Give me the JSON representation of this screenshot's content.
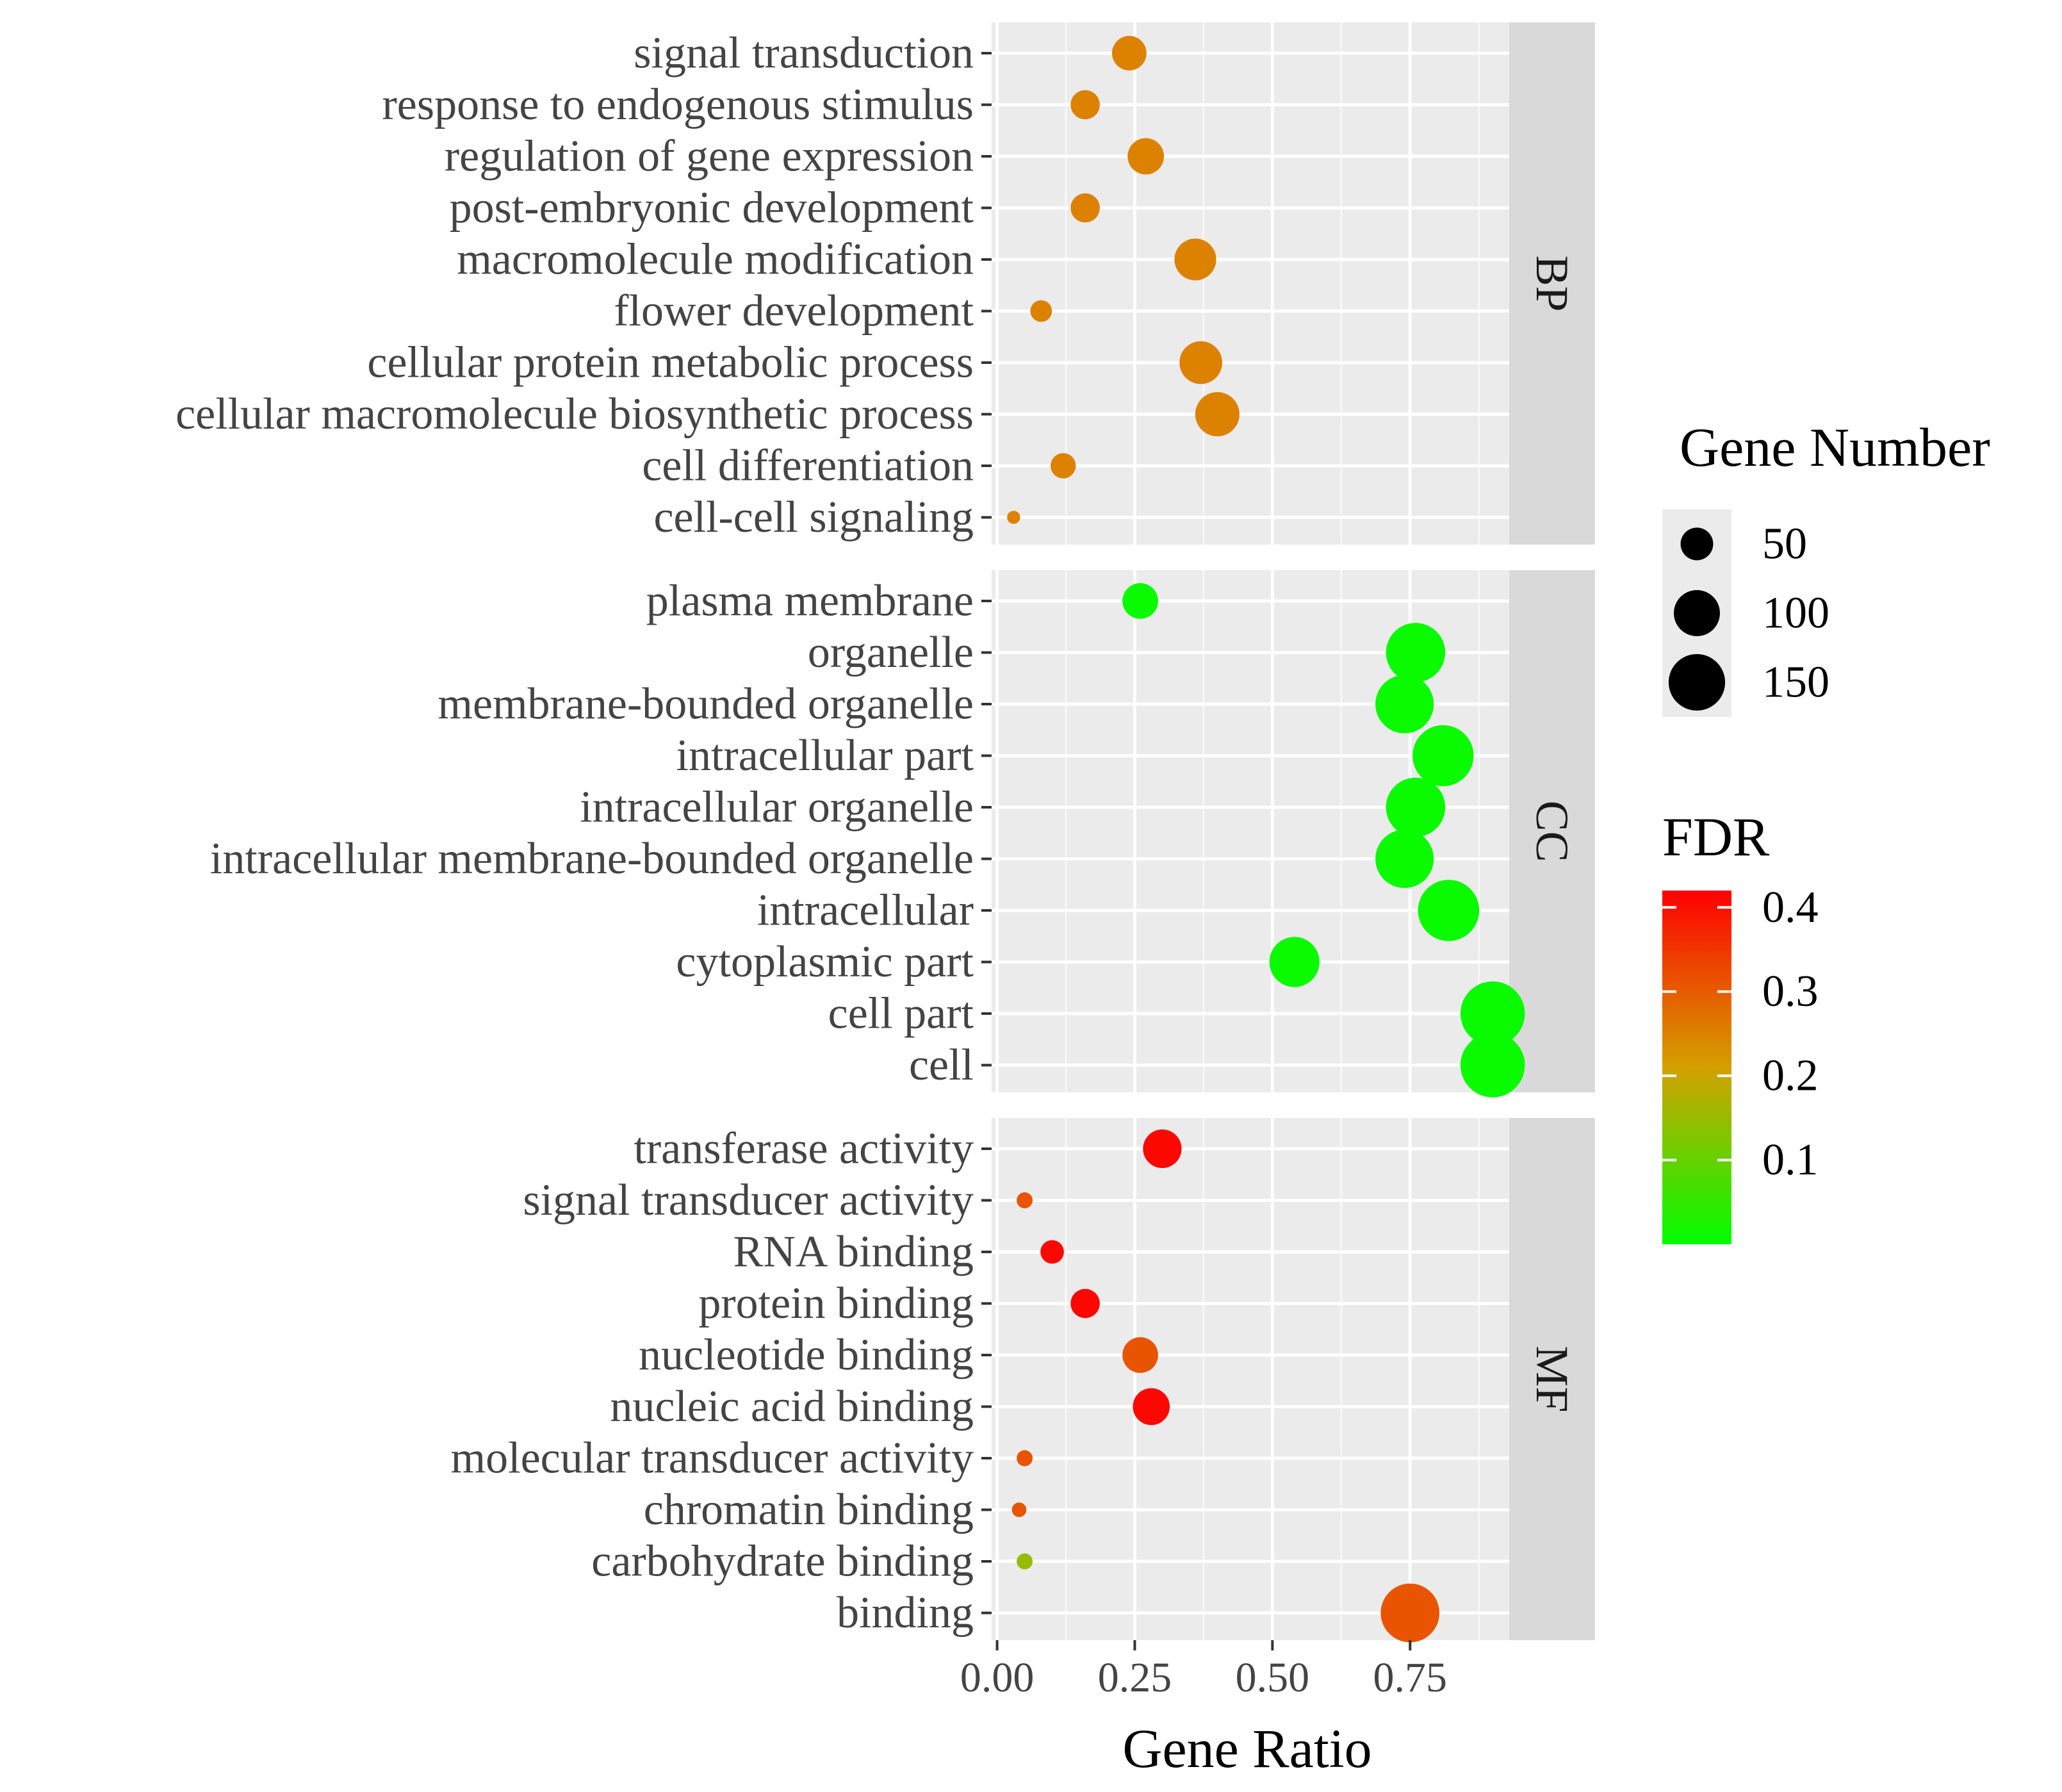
{
  "chart_data": {
    "type": "scatter",
    "xlabel": "Gene Ratio",
    "xlim": [
      -0.01,
      0.93
    ],
    "xticks": [
      0,
      0.25,
      0.5,
      0.75
    ],
    "xtick_labels": [
      "0.00",
      "0.25",
      "0.50",
      "0.75"
    ],
    "size_legend": {
      "title": "Gene Number",
      "values": [
        50,
        100,
        150
      ],
      "labels": [
        "50",
        "100",
        "150"
      ]
    },
    "color_legend": {
      "title": "FDR",
      "min": 0,
      "max": 0.42,
      "ticks": [
        0.1,
        0.2,
        0.3,
        0.4
      ],
      "tick_labels": [
        "0.1",
        "0.2",
        "0.3",
        "0.4"
      ],
      "low_color": "#00ff00",
      "high_color": "#ff0000"
    },
    "facets": [
      {
        "name": "BP",
        "terms": [
          {
            "term": "signal transduction",
            "ratio": 0.24,
            "count": 56,
            "fdr": 0.25
          },
          {
            "term": "response to endogenous stimulus",
            "ratio": 0.16,
            "count": 40,
            "fdr": 0.25
          },
          {
            "term": "regulation of gene expression",
            "ratio": 0.27,
            "count": 62,
            "fdr": 0.25
          },
          {
            "term": "post-embryonic development",
            "ratio": 0.16,
            "count": 40,
            "fdr": 0.25
          },
          {
            "term": "macromolecule modification",
            "ratio": 0.36,
            "count": 82,
            "fdr": 0.25
          },
          {
            "term": "flower development",
            "ratio": 0.08,
            "count": 22,
            "fdr": 0.25
          },
          {
            "term": "cellular protein metabolic process",
            "ratio": 0.37,
            "count": 86,
            "fdr": 0.25
          },
          {
            "term": "cellular macromolecule biosynthetic process",
            "ratio": 0.4,
            "count": 92,
            "fdr": 0.25
          },
          {
            "term": "cell differentiation",
            "ratio": 0.12,
            "count": 30,
            "fdr": 0.25
          },
          {
            "term": "cell-cell signaling",
            "ratio": 0.03,
            "count": 8,
            "fdr": 0.25
          }
        ]
      },
      {
        "name": "CC",
        "terms": [
          {
            "term": "plasma membrane",
            "ratio": 0.26,
            "count": 60,
            "fdr": 0.01
          },
          {
            "term": "organelle",
            "ratio": 0.76,
            "count": 165,
            "fdr": 0.01
          },
          {
            "term": "membrane-bounded organelle",
            "ratio": 0.74,
            "count": 160,
            "fdr": 0.01
          },
          {
            "term": "intracellular part",
            "ratio": 0.81,
            "count": 175,
            "fdr": 0.01
          },
          {
            "term": "intracellular organelle",
            "ratio": 0.76,
            "count": 165,
            "fdr": 0.01
          },
          {
            "term": "intracellular membrane-bounded organelle",
            "ratio": 0.74,
            "count": 160,
            "fdr": 0.01
          },
          {
            "term": "intracellular",
            "ratio": 0.82,
            "count": 176,
            "fdr": 0.01
          },
          {
            "term": "cytoplasmic part",
            "ratio": 0.54,
            "count": 118,
            "fdr": 0.01
          },
          {
            "term": "cell part",
            "ratio": 0.9,
            "count": 195,
            "fdr": 0.01
          },
          {
            "term": "cell",
            "ratio": 0.9,
            "count": 195,
            "fdr": 0.01
          }
        ]
      },
      {
        "name": "MF",
        "terms": [
          {
            "term": "transferase activity",
            "ratio": 0.3,
            "count": 70,
            "fdr": 0.41
          },
          {
            "term": "signal transducer activity",
            "ratio": 0.05,
            "count": 12,
            "fdr": 0.31
          },
          {
            "term": "RNA binding",
            "ratio": 0.1,
            "count": 26,
            "fdr": 0.41
          },
          {
            "term": "protein binding",
            "ratio": 0.16,
            "count": 40,
            "fdr": 0.41
          },
          {
            "term": "nucleotide binding",
            "ratio": 0.26,
            "count": 60,
            "fdr": 0.31
          },
          {
            "term": "nucleic acid binding",
            "ratio": 0.28,
            "count": 64,
            "fdr": 0.41
          },
          {
            "term": "molecular transducer activity",
            "ratio": 0.05,
            "count": 12,
            "fdr": 0.31
          },
          {
            "term": "chromatin binding",
            "ratio": 0.04,
            "count": 10,
            "fdr": 0.31
          },
          {
            "term": "carbohydrate binding",
            "ratio": 0.05,
            "count": 12,
            "fdr": 0.15
          },
          {
            "term": "binding",
            "ratio": 0.75,
            "count": 162,
            "fdr": 0.31
          }
        ]
      }
    ]
  }
}
